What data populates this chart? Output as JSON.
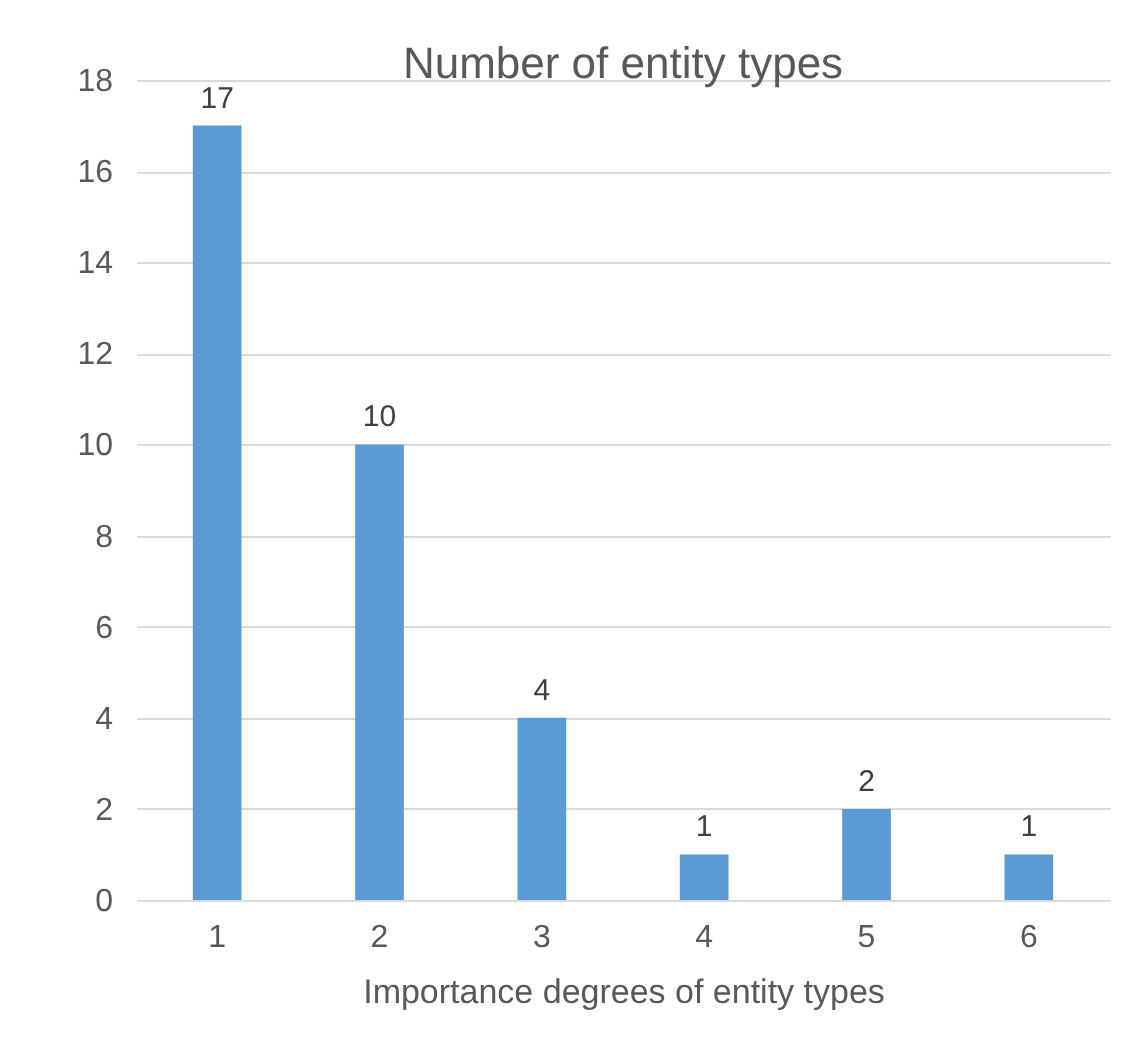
{
  "chart_data": {
    "type": "bar",
    "title": "Number of entity types",
    "xlabel": "Importance degrees of entity types",
    "categories": [
      "1",
      "2",
      "3",
      "4",
      "5",
      "6"
    ],
    "series": [
      {
        "color": "#5b9bd5",
        "values": [
          17,
          10,
          4,
          1,
          2,
          1
        ]
      }
    ],
    "ylim": [
      0,
      18
    ],
    "yticks": [
      0,
      2,
      4,
      6,
      8,
      10,
      12,
      14,
      16,
      18
    ],
    "grid": "y",
    "data_labels": true
  }
}
